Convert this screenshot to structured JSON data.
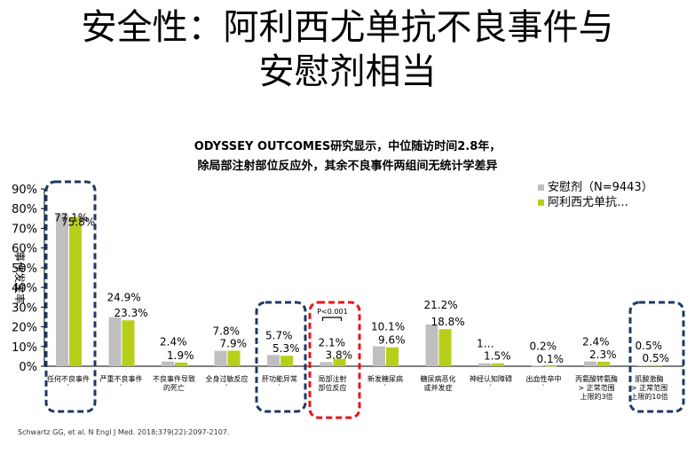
{
  "slide": {
    "title_line1": "安全性：阿利西尤单抗不良事件与",
    "title_line2": "安慰剂相当",
    "subtitle_line1": "ODYSSEY OUTCOMES研究显示，中位随访时间2.8年，",
    "subtitle_line2": "除局部注射部位反应外，其余不良事件两组间无统计学差异",
    "footnote": "Schwartz GG, et al. N Engl J Med. 2018;379(22):2097-2107."
  },
  "chart_data": {
    "type": "bar",
    "ylabel": "事件发生率",
    "ylim": [
      0,
      90
    ],
    "yticks": [
      "0%",
      "10%",
      "20%",
      "30%",
      "40%",
      "50%",
      "60%",
      "70%",
      "80%",
      "90%"
    ],
    "categories": [
      [
        "任何不良事件",
        "`"
      ],
      [
        "严重不良事件",
        "`"
      ],
      [
        "不良事件导致",
        "的死亡"
      ],
      [
        "全身过敏反应",
        "`"
      ],
      [
        "肝功能异常",
        "`"
      ],
      [
        "局部注射",
        "部位反应"
      ],
      [
        "新发糖尿病",
        "`"
      ],
      [
        "糖尿病恶化",
        "或并发症"
      ],
      [
        "神经认知障碍",
        "`"
      ],
      [
        "出血性卒中",
        "`"
      ],
      [
        "丙氨酸转氨酶",
        "> 正常范围",
        "上限的3倍"
      ],
      [
        "肌酸激酶",
        "> 正常范围",
        "上限的10倍"
      ]
    ],
    "series": [
      {
        "name": "安慰剂（N=9443）",
        "color": "#bfbfbf",
        "values": [
          77.1,
          24.9,
          2.4,
          7.8,
          5.7,
          2.1,
          10.1,
          21.2,
          1.5,
          0.2,
          2.4,
          0.5
        ],
        "labels": [
          "77.1%",
          "24.9%",
          "2.4%",
          "7.8%",
          "5.7%",
          "2.1%",
          "10.1%",
          "21.2%",
          "1…",
          "0.2%",
          "2.4%",
          "0.5%"
        ]
      },
      {
        "name": "阿利西尤单抗…",
        "color": "#b8cf1a",
        "values": [
          75.8,
          23.3,
          1.9,
          7.9,
          5.3,
          3.8,
          9.6,
          18.8,
          1.5,
          0.1,
          2.3,
          0.5
        ],
        "labels": [
          "75.8%",
          "23.3%",
          "1.9%",
          "7.9%",
          "5.3%",
          "3.8%",
          "9.6%",
          "18.8%",
          "1.5%",
          "0.1%",
          "2.3%",
          "0.5%"
        ]
      }
    ],
    "annotation": "P<0.001",
    "highlight_colors": {
      "blue": "#1f3864",
      "red": "#e8141c"
    },
    "legend_position": "top-right",
    "grid": false
  }
}
